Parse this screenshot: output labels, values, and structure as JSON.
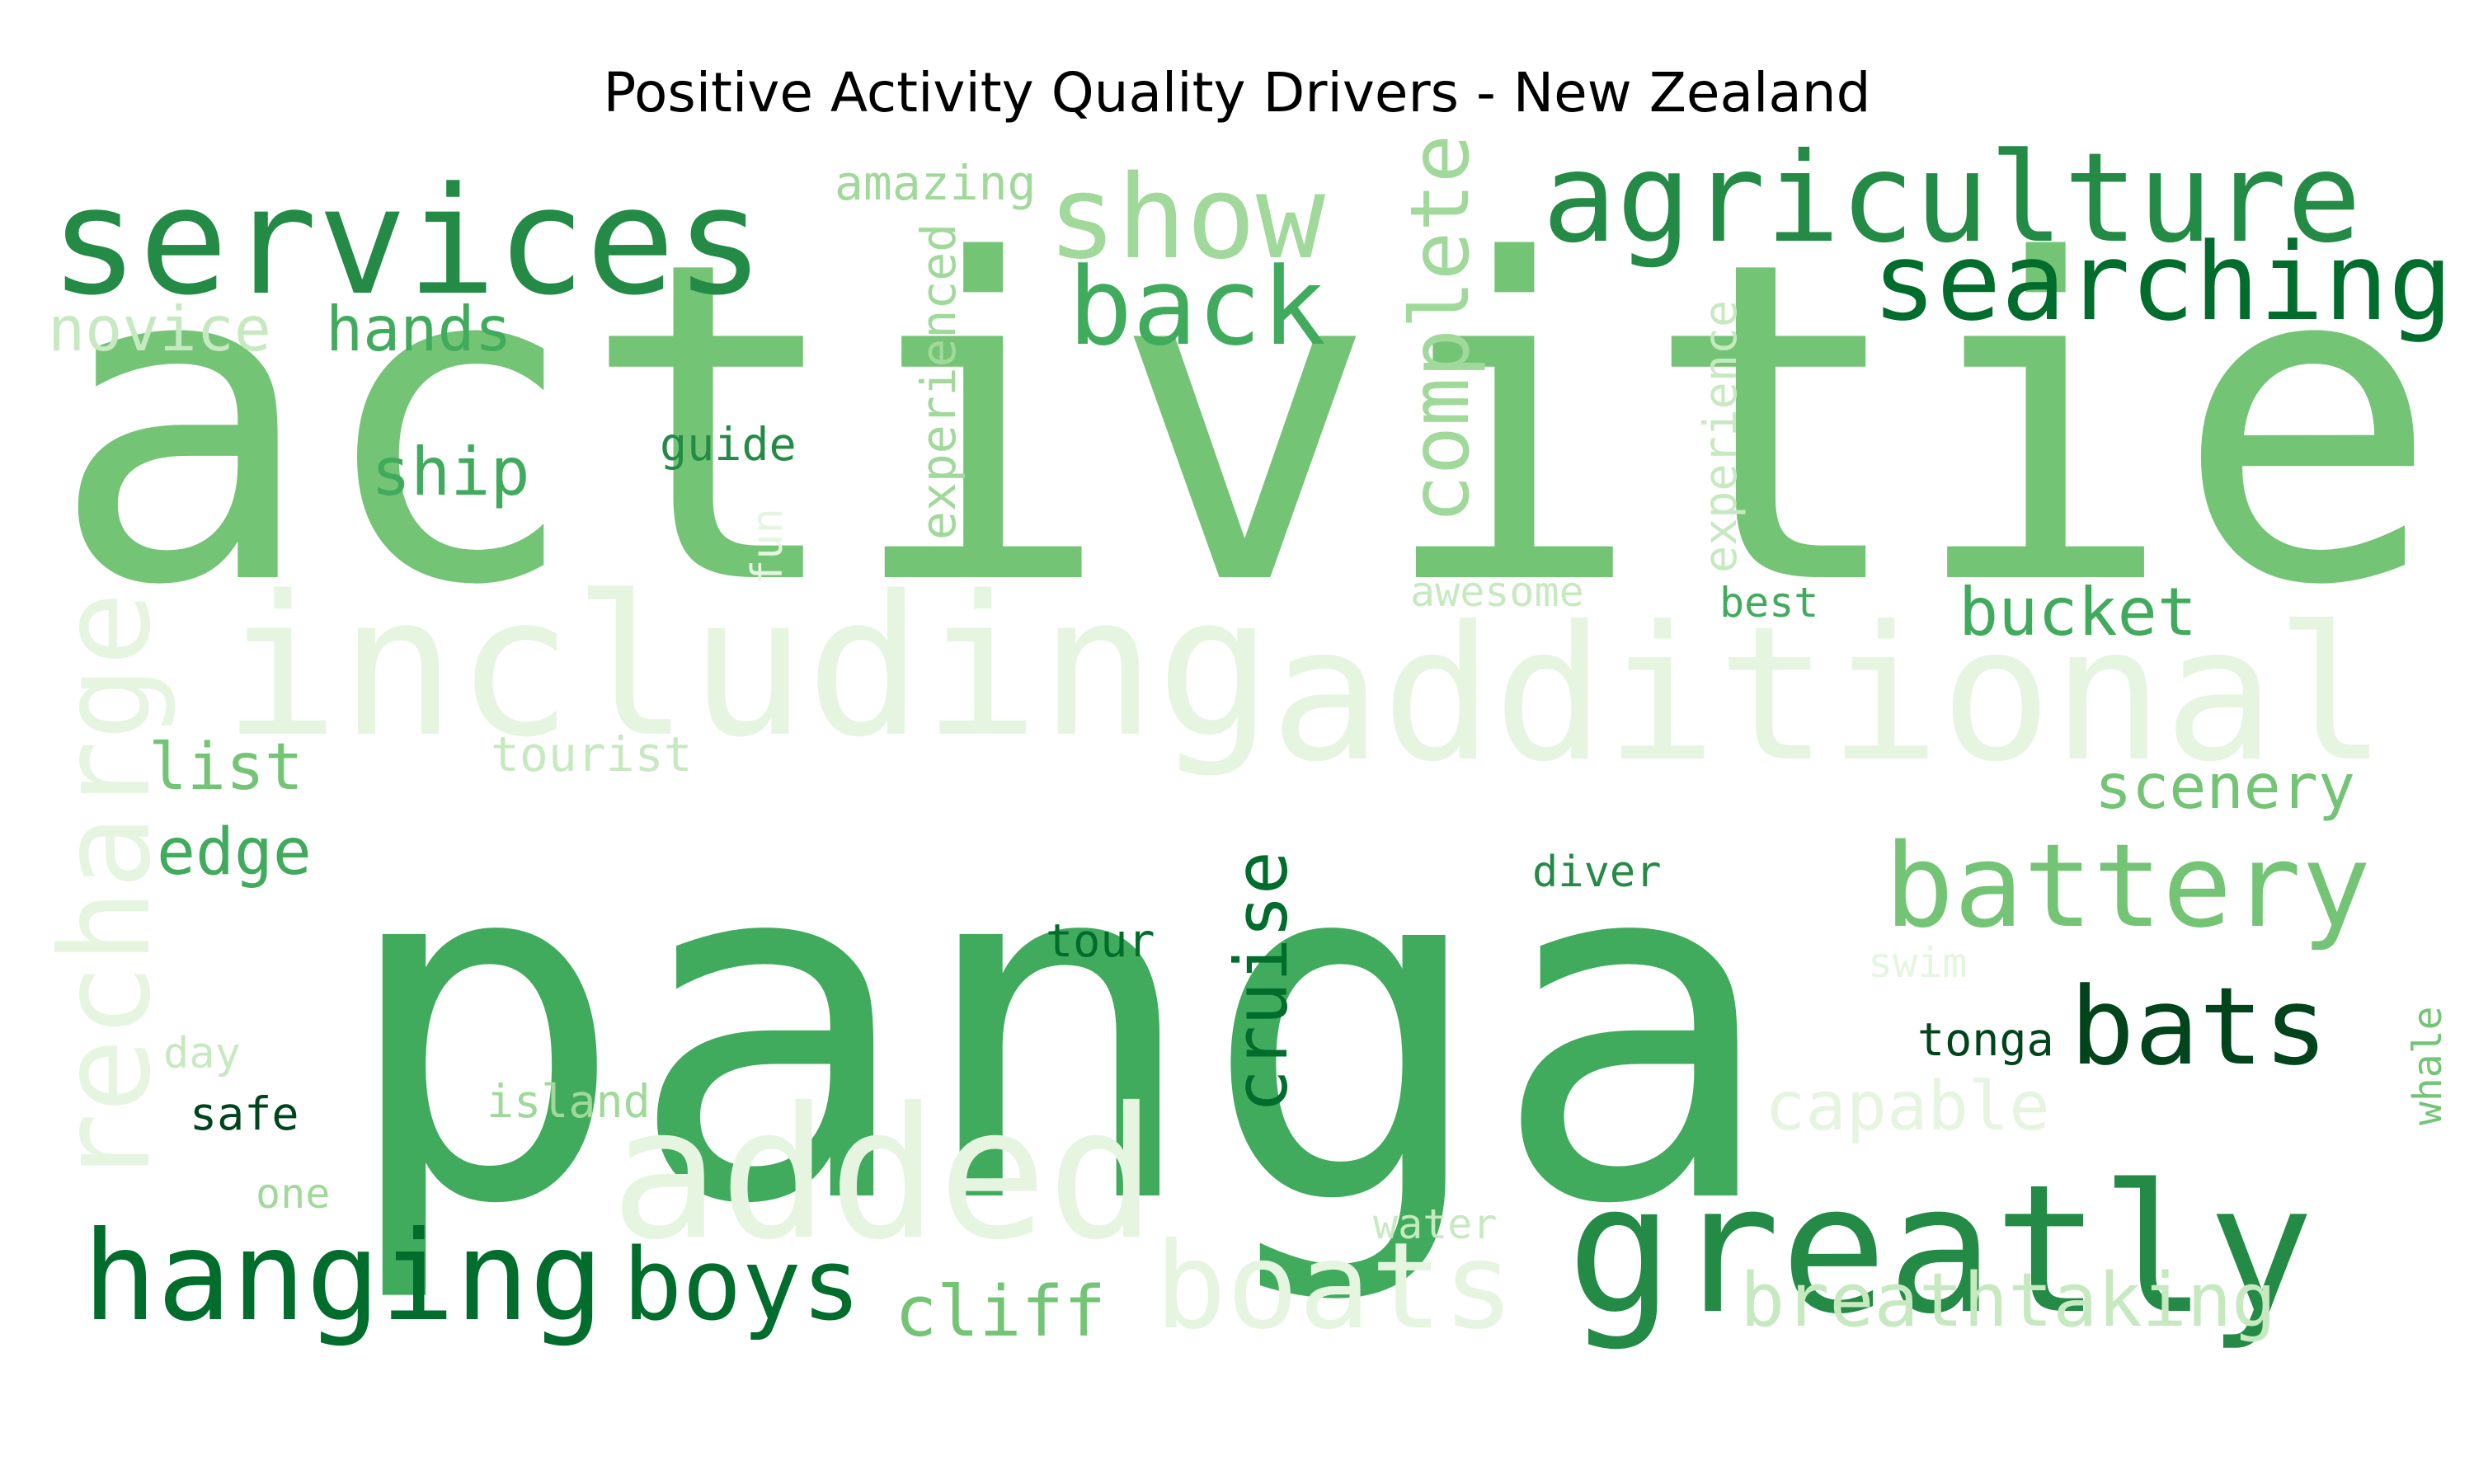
{
  "title": "Positive Activity Quality Drivers - New Zealand",
  "palette": [
    "#00441b",
    "#006d2c",
    "#238b45",
    "#41ab5d",
    "#74c476",
    "#a1d99b",
    "#c7e9c0",
    "#e5f5e0"
  ],
  "words": [
    {
      "text": "activities",
      "shade": 4
    },
    {
      "text": "panga",
      "shade": 3
    },
    {
      "text": "including",
      "shade": 7
    },
    {
      "text": "additional",
      "shade": 7
    },
    {
      "text": "greatly",
      "shade": 2
    },
    {
      "text": "services",
      "shade": 2
    },
    {
      "text": "agriculture",
      "shade": 2
    },
    {
      "text": "added",
      "shade": 7
    },
    {
      "text": "searching",
      "shade": 1
    },
    {
      "text": "hanging",
      "shade": 1
    },
    {
      "text": "show",
      "shade": 5
    },
    {
      "text": "back",
      "shade": 3
    },
    {
      "text": "battery",
      "shade": 4
    },
    {
      "text": "boats",
      "shade": 7
    },
    {
      "text": "bats",
      "shade": 0
    },
    {
      "text": "recharge",
      "shade": 7
    },
    {
      "text": "boys",
      "shade": 1
    },
    {
      "text": "complete",
      "shade": 5
    },
    {
      "text": "cruise",
      "shade": 1
    },
    {
      "text": "breathtaking",
      "shade": 6
    },
    {
      "text": "cliff",
      "shade": 4
    },
    {
      "text": "bucket",
      "shade": 3
    },
    {
      "text": "capable",
      "shade": 7
    },
    {
      "text": "scenery",
      "shade": 4
    },
    {
      "text": "novice",
      "shade": 6
    },
    {
      "text": "hands",
      "shade": 3
    },
    {
      "text": "list",
      "shade": 4
    },
    {
      "text": "edge",
      "shade": 3
    },
    {
      "text": "ship",
      "shade": 3
    },
    {
      "text": "experienced",
      "shade": 5
    },
    {
      "text": "experience",
      "shade": 6
    },
    {
      "text": "amazing",
      "shade": 5
    },
    {
      "text": "tourist",
      "shade": 6
    },
    {
      "text": "guide",
      "shade": 2
    },
    {
      "text": "tour",
      "shade": 1
    },
    {
      "text": "diver",
      "shade": 2
    },
    {
      "text": "awesome",
      "shade": 6
    },
    {
      "text": "best",
      "shade": 3
    },
    {
      "text": "tonga",
      "shade": 0
    },
    {
      "text": "safe",
      "shade": 0
    },
    {
      "text": "island",
      "shade": 5
    },
    {
      "text": "day",
      "shade": 6
    },
    {
      "text": "one",
      "shade": 5
    },
    {
      "text": "water",
      "shade": 6
    },
    {
      "text": "swim",
      "shade": 7
    },
    {
      "text": "whale",
      "shade": 4
    },
    {
      "text": "fun",
      "shade": 7
    }
  ]
}
